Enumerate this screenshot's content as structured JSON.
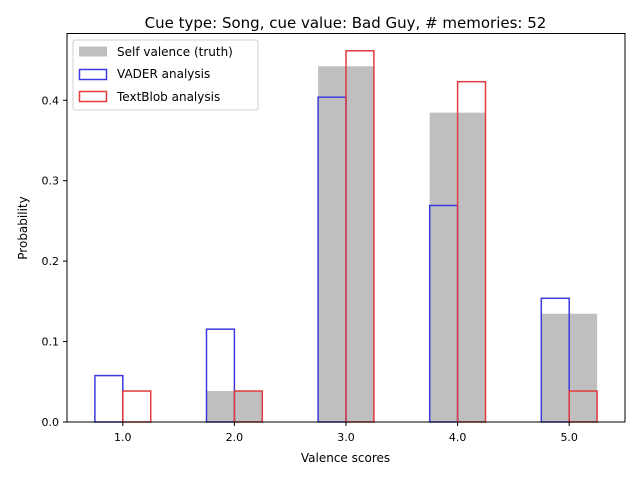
{
  "chart_data": {
    "type": "bar",
    "title": "Cue type: Song, cue value: Bad Guy, # memories: 52",
    "xlabel": "Valence scores",
    "ylabel": "Probability",
    "categories": [
      "1.0",
      "2.0",
      "3.0",
      "4.0",
      "5.0"
    ],
    "x": [
      1,
      2,
      3,
      4,
      5
    ],
    "xlim": [
      0.5,
      5.5
    ],
    "ylim": [
      0,
      0.483
    ],
    "yticks": [
      "0.0",
      "0.1",
      "0.2",
      "0.3",
      "0.4"
    ],
    "ytick_values": [
      0,
      0.1,
      0.2,
      0.3,
      0.4
    ],
    "grid": false,
    "legend_position": "upper left",
    "series": [
      {
        "name": "Self valence (truth)",
        "style": "filled",
        "color": "#bfbfbf",
        "values": [
          0.0,
          0.0385,
          0.4423,
          0.3846,
          0.1346
        ]
      },
      {
        "name": "VADER analysis",
        "style": "outline",
        "color": "#3b3bdc",
        "values": [
          0.0577,
          0.1154,
          0.4038,
          0.2692,
          0.1538
        ]
      },
      {
        "name": "TextBlob analysis",
        "style": "outline",
        "color": "#e23b3b",
        "values": [
          0.0385,
          0.0385,
          0.4615,
          0.4231,
          0.0385
        ]
      }
    ]
  }
}
